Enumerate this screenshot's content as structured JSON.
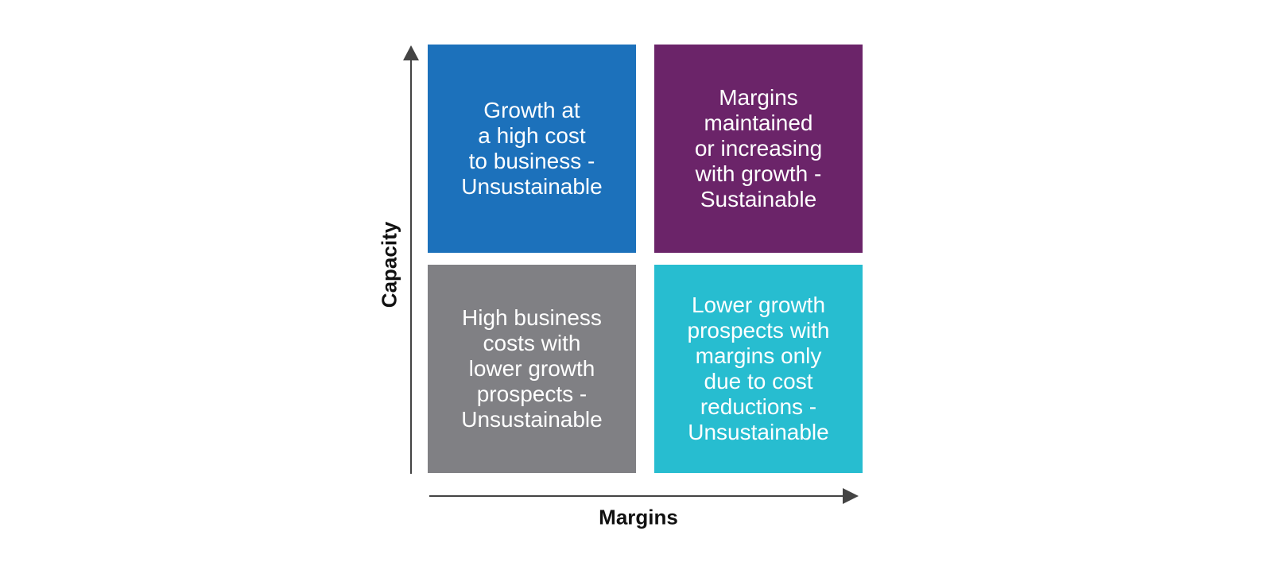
{
  "axes": {
    "y_label": "Capacity",
    "x_label": "Margins",
    "color": "#444444"
  },
  "quadrants": {
    "top_left": {
      "text": "Growth at\na high cost\nto business -\nUnsustainable",
      "color": "#1c71bb"
    },
    "top_right": {
      "text": "Margins\nmaintained\nor increasing\nwith growth -\nSustainable",
      "color": "#6b2469"
    },
    "bottom_left": {
      "text": "High business\ncosts with\nlower growth\nprospects -\nUnsustainable",
      "color": "#808084"
    },
    "bottom_right": {
      "text": "Lower growth\nprospects with\nmargins only\ndue to cost\nreductions -\nUnsustainable",
      "color": "#27bdd0"
    }
  }
}
